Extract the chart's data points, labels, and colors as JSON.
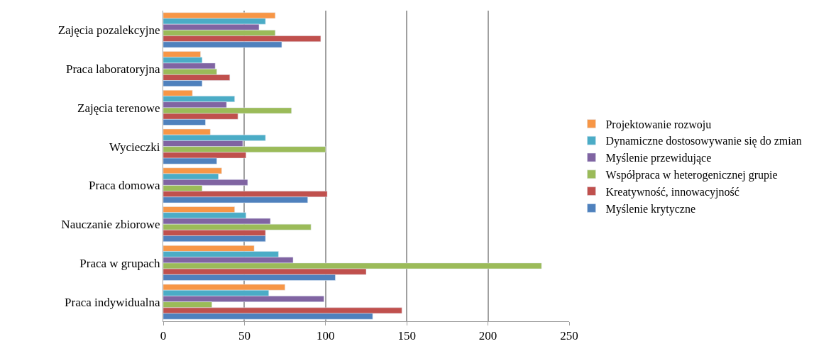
{
  "chart_data": {
    "type": "bar",
    "orientation": "horizontal",
    "categories": [
      "Zajęcia pozalekcyjne",
      "Praca laboratoryjna",
      "Zajęcia terenowe",
      "Wycieczki",
      "Praca domowa",
      "Nauczanie zbiorowe",
      "Praca w grupach",
      "Praca indywidualna"
    ],
    "series": [
      {
        "name": "Projektowanie rozwoju",
        "color": "#f79646",
        "values": [
          69,
          23,
          18,
          29,
          36,
          44,
          56,
          75
        ]
      },
      {
        "name": "Dynamiczne dostosowywanie się do zmian",
        "color": "#4bacc6",
        "values": [
          63,
          24,
          44,
          63,
          34,
          51,
          71,
          65
        ]
      },
      {
        "name": "Myślenie przewidujące",
        "color": "#8064a2",
        "values": [
          59,
          32,
          39,
          49,
          52,
          66,
          80,
          99
        ]
      },
      {
        "name": "Współpraca w heterogenicznej grupie",
        "color": "#9bbb59",
        "values": [
          69,
          33,
          79,
          100,
          24,
          91,
          233,
          30
        ]
      },
      {
        "name": "Kreatywność, innowacyjność",
        "color": "#c0504d",
        "values": [
          97,
          41,
          46,
          51,
          101,
          63,
          125,
          147
        ]
      },
      {
        "name": "Myślenie krytyczne",
        "color": "#4f81bd",
        "values": [
          73,
          24,
          26,
          33,
          89,
          63,
          106,
          129
        ]
      }
    ],
    "xlim": [
      0,
      250
    ],
    "xticks": [
      0,
      50,
      100,
      150,
      200,
      250
    ],
    "grid": "x",
    "legend": "right"
  }
}
